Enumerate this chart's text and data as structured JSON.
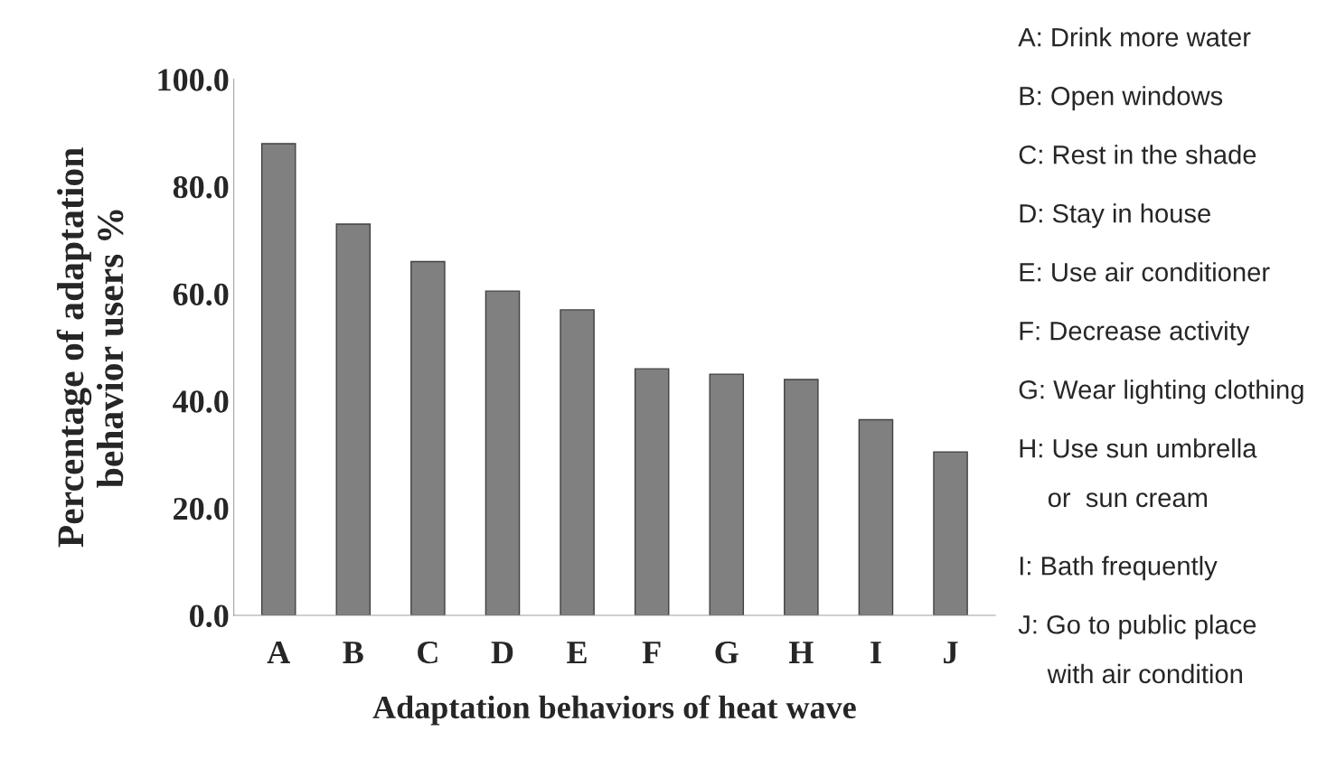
{
  "chart_data": {
    "type": "bar",
    "xlabel": "Adaptation behaviors of heat wave",
    "ylabel": "Percentage of adaptation\nbehavior users %",
    "categories": [
      "A",
      "B",
      "C",
      "D",
      "E",
      "F",
      "G",
      "H",
      "I",
      "J"
    ],
    "values": [
      88,
      73,
      66,
      60.5,
      57,
      46,
      45,
      44,
      36.5,
      30.5
    ],
    "color": "#808080",
    "ylim": [
      0,
      100
    ],
    "yticks": [
      {
        "value": 0,
        "label": "0.0"
      },
      {
        "value": 20,
        "label": "20.0"
      },
      {
        "value": 40,
        "label": "40.0"
      },
      {
        "value": 60,
        "label": "60.0"
      },
      {
        "value": 80,
        "label": "80.0"
      },
      {
        "value": 100,
        "label": "100.0"
      }
    ],
    "grid": false,
    "annotations": [
      "A: Drink more water",
      "B: Open windows",
      "C: Rest in the shade",
      "D: Stay in house",
      "E: Use air conditioner",
      "F: Decrease activity",
      "G: Wear lighting clothing",
      "H: Use sun umbrella\n    or  sun cream",
      "I: Bath frequently",
      "J: Go to public place\n    with air condition"
    ]
  }
}
